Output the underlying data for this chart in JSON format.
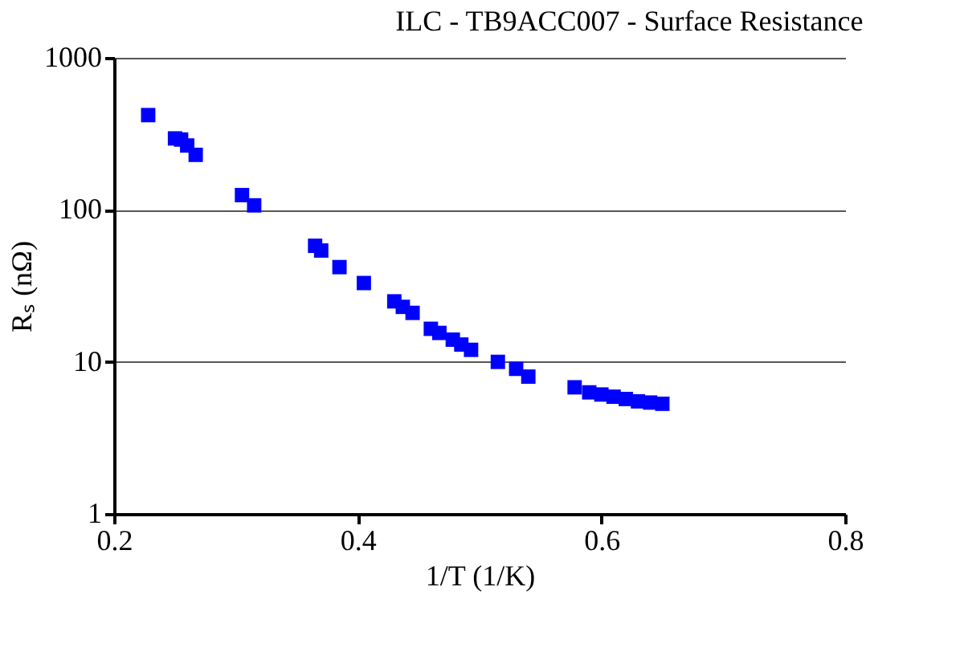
{
  "chart_data": {
    "type": "scatter",
    "title": "ILC - TB9ACC007 - Surface Resistance",
    "xlabel": "1/T (1/K)",
    "ylabel": "Rₛ (nΩ)",
    "x": [
      0.228,
      0.25,
      0.255,
      0.26,
      0.267,
      0.305,
      0.315,
      0.365,
      0.37,
      0.385,
      0.405,
      0.43,
      0.437,
      0.445,
      0.46,
      0.467,
      0.478,
      0.485,
      0.493,
      0.515,
      0.53,
      0.54,
      0.578,
      0.59,
      0.6,
      0.61,
      0.62,
      0.63,
      0.64,
      0.65
    ],
    "series": [
      {
        "color": "#0000ff",
        "values": [
          420,
          295,
          290,
          265,
          230,
          125,
          107,
          58,
          54,
          42,
          33,
          25,
          23,
          21,
          16.5,
          15.5,
          14,
          13,
          12,
          10,
          9,
          8,
          6.8,
          6.3,
          6.1,
          5.9,
          5.7,
          5.5,
          5.4,
          5.3
        ]
      }
    ],
    "xlim": [
      0.2,
      0.8
    ],
    "xticks": [
      0.2,
      0.4,
      0.6,
      0.8
    ],
    "ylim": [
      1,
      1000
    ],
    "yticks": [
      1,
      10,
      100,
      1000
    ],
    "log": "y",
    "grid": "y",
    "marker": "square"
  }
}
